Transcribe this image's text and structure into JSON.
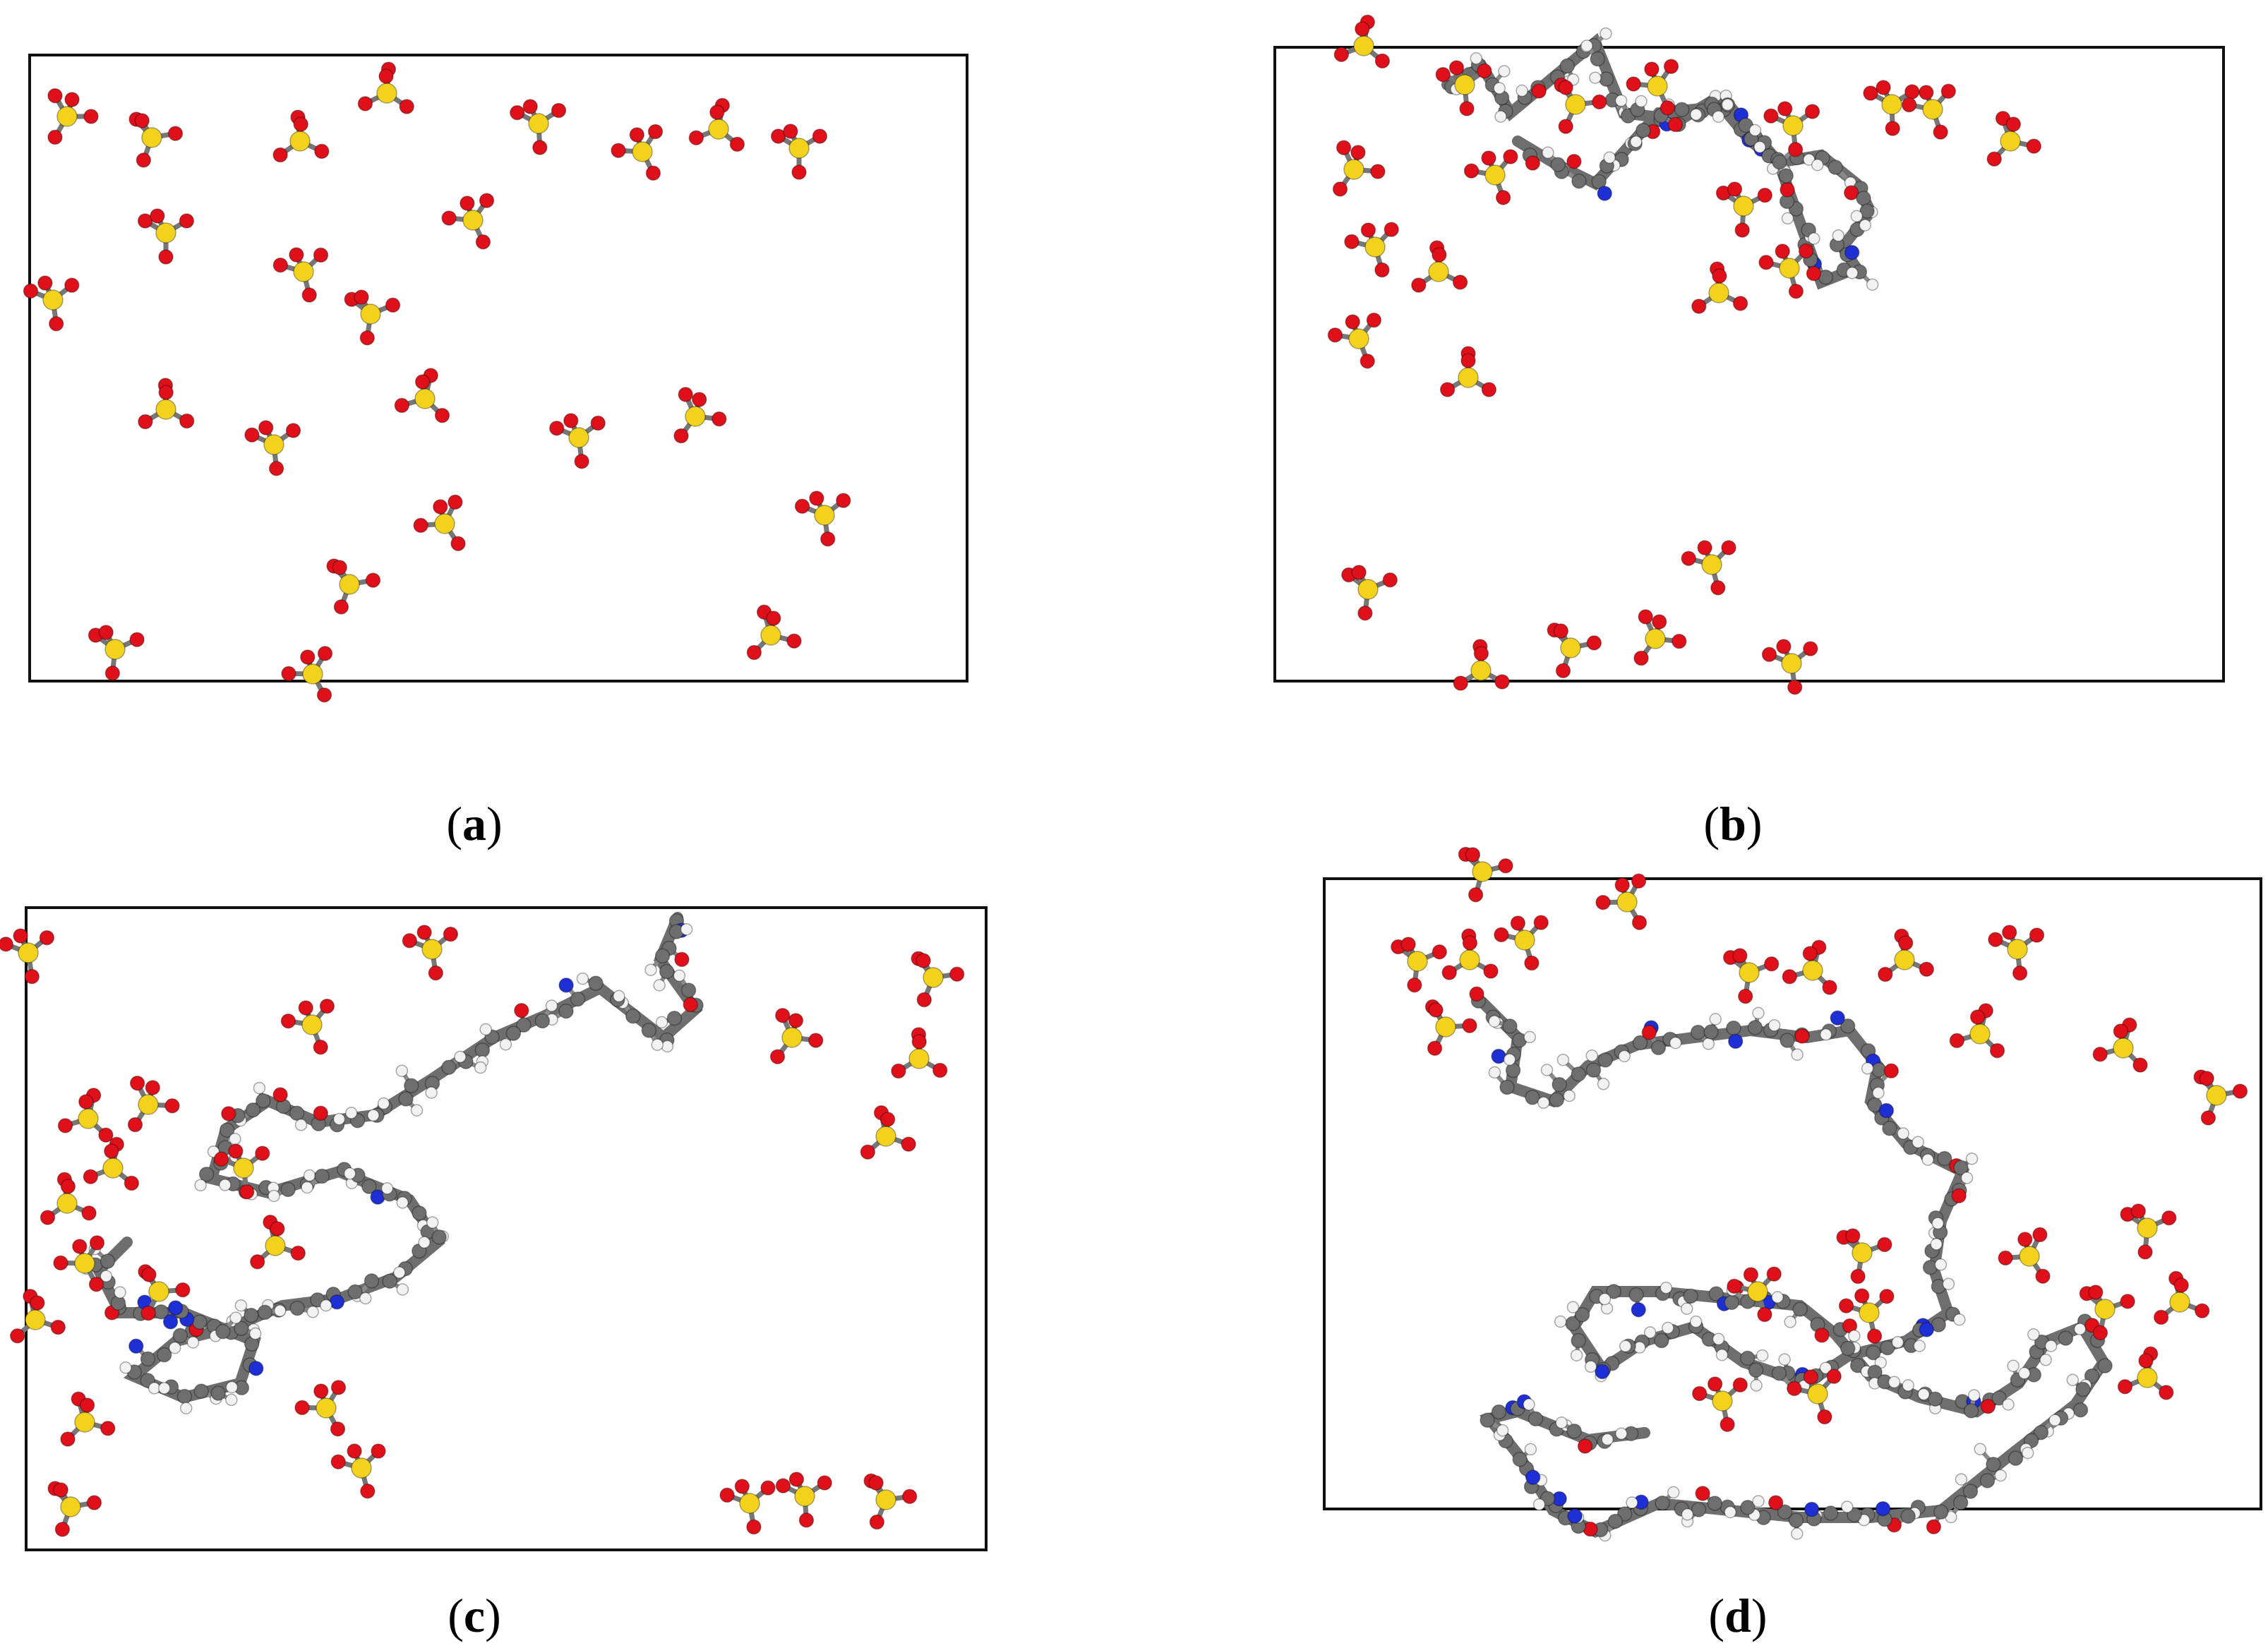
{
  "figure": {
    "panels": [
      {
        "id": "a",
        "caption_open": "(",
        "caption_label": "a",
        "caption_close": ")",
        "chain": "none"
      },
      {
        "id": "b",
        "caption_open": "(",
        "caption_label": "b",
        "caption_close": ")",
        "chain": "partial"
      },
      {
        "id": "c",
        "caption_open": "(",
        "caption_label": "c",
        "caption_close": ")",
        "chain": "extended"
      },
      {
        "id": "d",
        "caption_open": "(",
        "caption_label": "d",
        "caption_close": ")",
        "chain": "folded"
      }
    ],
    "atom_colors": {
      "sulfur": "#f2d21b",
      "oxygen": "#e0101a",
      "carbon": "#6e6e6e",
      "nitrogen": "#1f2fd6",
      "hydrogen": "#f2f2f2"
    }
  }
}
